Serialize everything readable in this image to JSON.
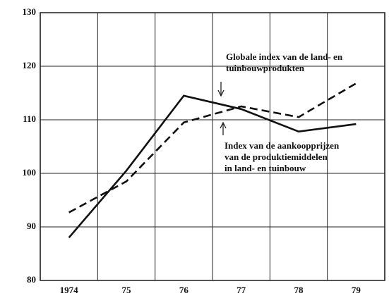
{
  "chart_data": {
    "type": "line",
    "categories": [
      "1974",
      "75",
      "76",
      "77",
      "78",
      "79"
    ],
    "series": [
      {
        "color": "#111111",
        "dash": "solid",
        "values": [
          88,
          100.5,
          114.5,
          112,
          107.8,
          109.2
        ]
      },
      {
        "color": "#111111",
        "dash": "dashed",
        "values": [
          92.7,
          98.5,
          109.5,
          112.5,
          110.5,
          116.8
        ]
      }
    ],
    "annotations": [
      {
        "lines": [
          "Globale index van de land- en",
          "tuinbouwprodukten"
        ]
      },
      {
        "lines": [
          "Index van de aankoopprijzen",
          "van de produktiemiddelen",
          "in land- en tuinbouw"
        ]
      }
    ],
    "ylim": [
      80,
      130
    ],
    "yticks": [
      80,
      90,
      100,
      110,
      120,
      130
    ],
    "grid": true
  }
}
